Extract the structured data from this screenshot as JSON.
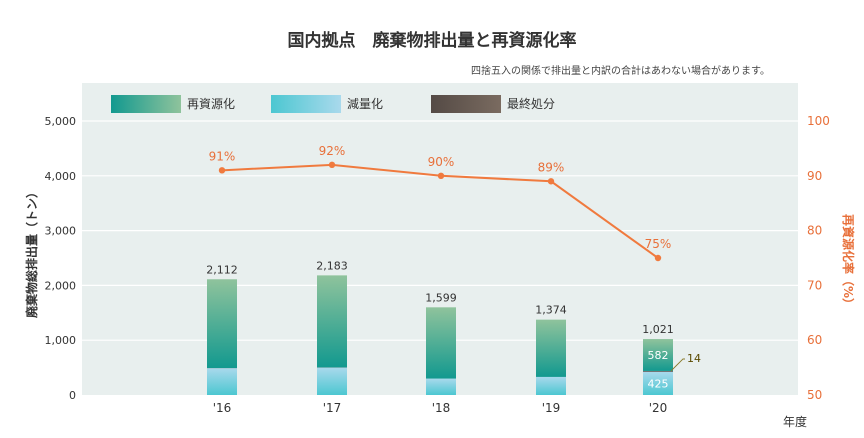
{
  "chart_data": {
    "type": "bar",
    "title": "国内拠点　廃棄物排出量と再資源化率",
    "note": "四捨五入の関係で排出量と内訳の合計はあわない場合があります。",
    "categories": [
      "'16",
      "'17",
      "'18",
      "'19",
      "'20"
    ],
    "xlabel": "年度",
    "ylabel": "廃棄物総排出量（トン）",
    "ylabel_right": "再資源化率（%）",
    "ylim": [
      0,
      5000
    ],
    "ylim_right": [
      50,
      100
    ],
    "yticks": [
      "0",
      "1,000",
      "2,000",
      "3,000",
      "4,000",
      "5,000"
    ],
    "yticks_right": [
      "50",
      "60",
      "70",
      "80",
      "90",
      "100"
    ],
    "legend": {
      "position": "top-left",
      "items": [
        "再資源化",
        "減量化",
        "最終処分"
      ]
    },
    "colors": {
      "recycle": [
        "#12998f",
        "#8fc39c"
      ],
      "reduce": [
        "#4cc7d1",
        "#a9d9ec"
      ],
      "final": [
        "#544a45",
        "#7a6b60"
      ],
      "rate": "#f07a3e",
      "plot_bg": "#e8efee"
    },
    "series": [
      {
        "name": "再資源化",
        "values": [
          1620,
          1680,
          1300,
          1045,
          582
        ]
      },
      {
        "name": "減量化",
        "values": [
          490,
          500,
          300,
          330,
          425
        ]
      },
      {
        "name": "最終処分",
        "values": [
          2,
          3,
          0,
          0,
          14
        ]
      }
    ],
    "totals": [
      2112,
      2183,
      1599,
      1374,
      1021
    ],
    "total_labels": [
      "2,112",
      "2,183",
      "1,599",
      "1,374",
      "1,021"
    ],
    "rate": {
      "name": "再資源化率",
      "values": [
        91,
        92,
        90,
        89,
        75
      ],
      "labels": [
        "91%",
        "92%",
        "90%",
        "89%",
        "75%"
      ]
    },
    "annotations": [
      {
        "category": "'20",
        "series": "再資源化",
        "text": "582"
      },
      {
        "category": "'20",
        "series": "減量化",
        "text": "425"
      },
      {
        "category": "'20",
        "series": "最終処分",
        "text": "14"
      }
    ]
  }
}
